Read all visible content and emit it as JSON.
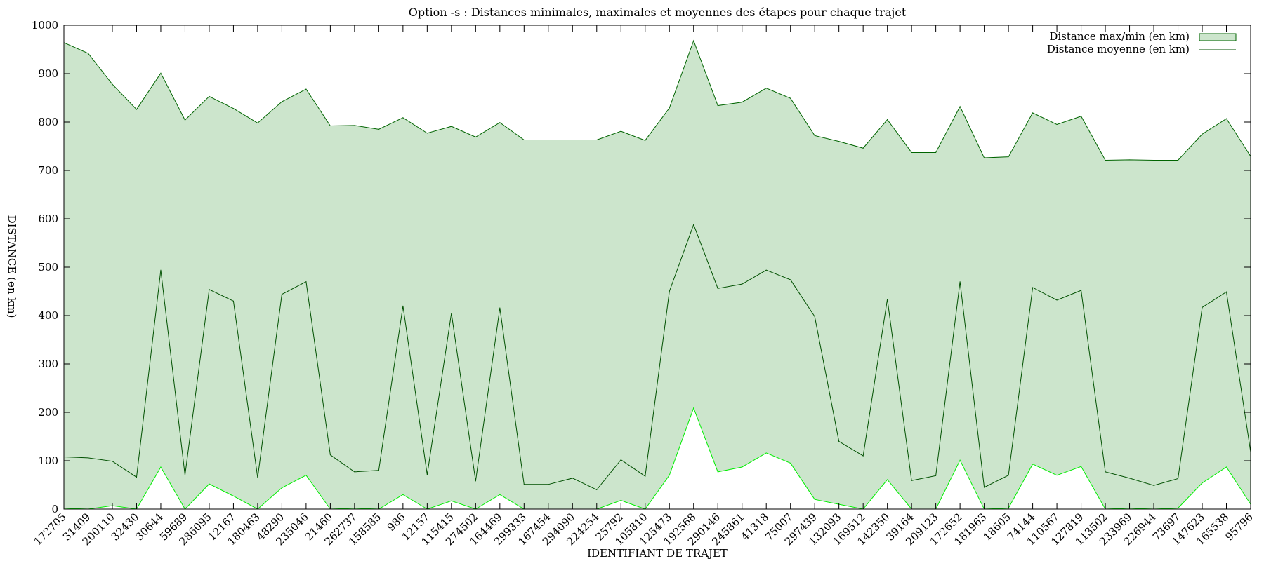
{
  "chart_data": {
    "type": "area",
    "title": "Option -s : Distances minimales, maximales et moyennes des étapes pour chaque trajet",
    "xlabel": "IDENTIFIANT DE TRAJET",
    "ylabel": "DISTANCE (en km)",
    "ylim": [
      0,
      1000
    ],
    "yticks": [
      0,
      100,
      200,
      300,
      400,
      500,
      600,
      700,
      800,
      900,
      1000
    ],
    "categories": [
      "172705",
      "31409",
      "200110",
      "32430",
      "30644",
      "59689",
      "286095",
      "12167",
      "180463",
      "48290",
      "235046",
      "21460",
      "262737",
      "158585",
      "986",
      "12157",
      "115415",
      "274502",
      "164469",
      "299333",
      "167454",
      "294090",
      "224254",
      "25792",
      "105810",
      "125473",
      "192568",
      "290146",
      "245861",
      "41318",
      "75007",
      "297439",
      "132093",
      "169512",
      "142350",
      "39164",
      "209123",
      "172652",
      "181963",
      "18605",
      "74144",
      "110567",
      "127819",
      "113502",
      "233969",
      "226944",
      "73697",
      "147623",
      "165538",
      "95796"
    ],
    "series": [
      {
        "name": "Distance max/min (en km)",
        "kind": "band",
        "max": [
          964,
          942,
          878,
          826,
          901,
          804,
          853,
          828,
          798,
          842,
          868,
          792,
          793,
          785,
          809,
          777,
          791,
          769,
          799,
          763,
          763,
          763,
          763,
          781,
          762,
          829,
          968,
          834,
          841,
          870,
          849,
          772,
          760,
          746,
          805,
          737,
          737,
          832,
          726,
          728,
          819,
          795,
          812,
          721,
          722,
          721,
          721,
          775,
          807,
          729
        ],
        "min": [
          2,
          0,
          7,
          0,
          87,
          0,
          52,
          27,
          0,
          44,
          70,
          0,
          2,
          0,
          30,
          0,
          17,
          0,
          30,
          0,
          0,
          0,
          0,
          18,
          0,
          70,
          209,
          77,
          87,
          116,
          95,
          20,
          10,
          0,
          61,
          0,
          0,
          101,
          0,
          2,
          93,
          70,
          88,
          0,
          2,
          0,
          2,
          54,
          87,
          10
        ]
      },
      {
        "name": "Distance moyenne (en km)",
        "kind": "line",
        "values": [
          108,
          106,
          99,
          66,
          494,
          70,
          454,
          430,
          65,
          444,
          470,
          112,
          77,
          80,
          420,
          71,
          405,
          58,
          416,
          51,
          51,
          64,
          40,
          102,
          68,
          450,
          588,
          456,
          465,
          494,
          474,
          398,
          140,
          110,
          434,
          59,
          69,
          470,
          45,
          70,
          458,
          432,
          452,
          77,
          64,
          49,
          63,
          417,
          449,
          118
        ]
      }
    ],
    "legend_position": "top-right",
    "grid": false,
    "colors": {
      "band_fill": "#cce5cc",
      "band_edge": "#006400",
      "min_line": "#00ee00",
      "avg_line": "#005000",
      "axis": "#000000"
    }
  }
}
